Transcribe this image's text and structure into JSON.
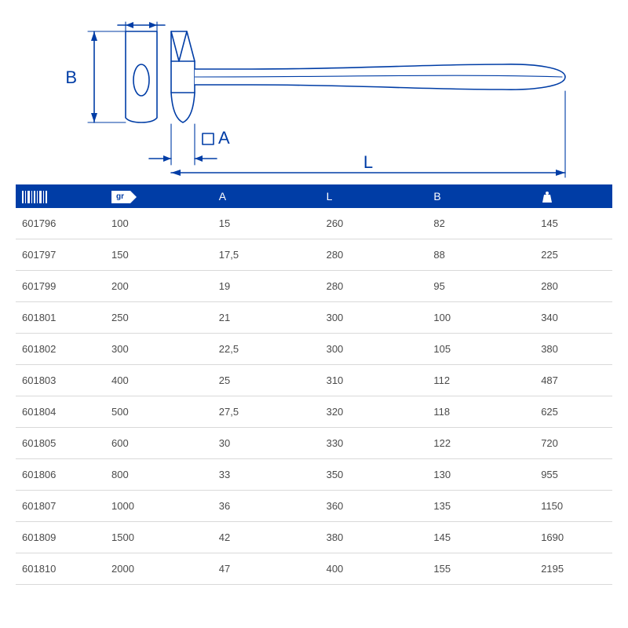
{
  "colors": {
    "header_bg": "#003da6",
    "header_text": "#ffffff",
    "row_text": "#4a4a4a",
    "row_border": "#d9d9d9",
    "diagram_stroke": "#003da6",
    "diagram_fill": "#ffffff",
    "diagram_label": "#003da6",
    "gr_tag_bg": "#ffffff",
    "gr_tag_text": "#003da6"
  },
  "diagram": {
    "labels": {
      "A": "A",
      "B": "B",
      "L": "L"
    },
    "label_fontsize": 22,
    "stroke_width": 1.6
  },
  "table": {
    "header": {
      "code_icon": "barcode",
      "weight_label": "gr",
      "A": "A",
      "L": "L",
      "B": "B",
      "mass_icon": "weight"
    },
    "header_fontsize": 14,
    "cell_fontsize": 13,
    "columns": [
      "code",
      "weight",
      "A",
      "L",
      "B",
      "mass"
    ],
    "rows": [
      {
        "code": "601796",
        "weight": "100",
        "A": "15",
        "L": "260",
        "B": "82",
        "mass": "145"
      },
      {
        "code": "601797",
        "weight": "150",
        "A": "17,5",
        "L": "280",
        "B": "88",
        "mass": "225"
      },
      {
        "code": "601799",
        "weight": "200",
        "A": "19",
        "L": "280",
        "B": "95",
        "mass": "280"
      },
      {
        "code": "601801",
        "weight": "250",
        "A": "21",
        "L": "300",
        "B": "100",
        "mass": "340"
      },
      {
        "code": "601802",
        "weight": "300",
        "A": "22,5",
        "L": "300",
        "B": "105",
        "mass": "380"
      },
      {
        "code": "601803",
        "weight": "400",
        "A": "25",
        "L": "310",
        "B": "112",
        "mass": "487"
      },
      {
        "code": "601804",
        "weight": "500",
        "A": "27,5",
        "L": "320",
        "B": "118",
        "mass": "625"
      },
      {
        "code": "601805",
        "weight": "600",
        "A": "30",
        "L": "330",
        "B": "122",
        "mass": "720"
      },
      {
        "code": "601806",
        "weight": "800",
        "A": "33",
        "L": "350",
        "B": "130",
        "mass": "955"
      },
      {
        "code": "601807",
        "weight": "1000",
        "A": "36",
        "L": "360",
        "B": "135",
        "mass": "1150"
      },
      {
        "code": "601809",
        "weight": "1500",
        "A": "42",
        "L": "380",
        "B": "145",
        "mass": "1690"
      },
      {
        "code": "601810",
        "weight": "2000",
        "A": "47",
        "L": "400",
        "B": "155",
        "mass": "2195"
      }
    ]
  }
}
